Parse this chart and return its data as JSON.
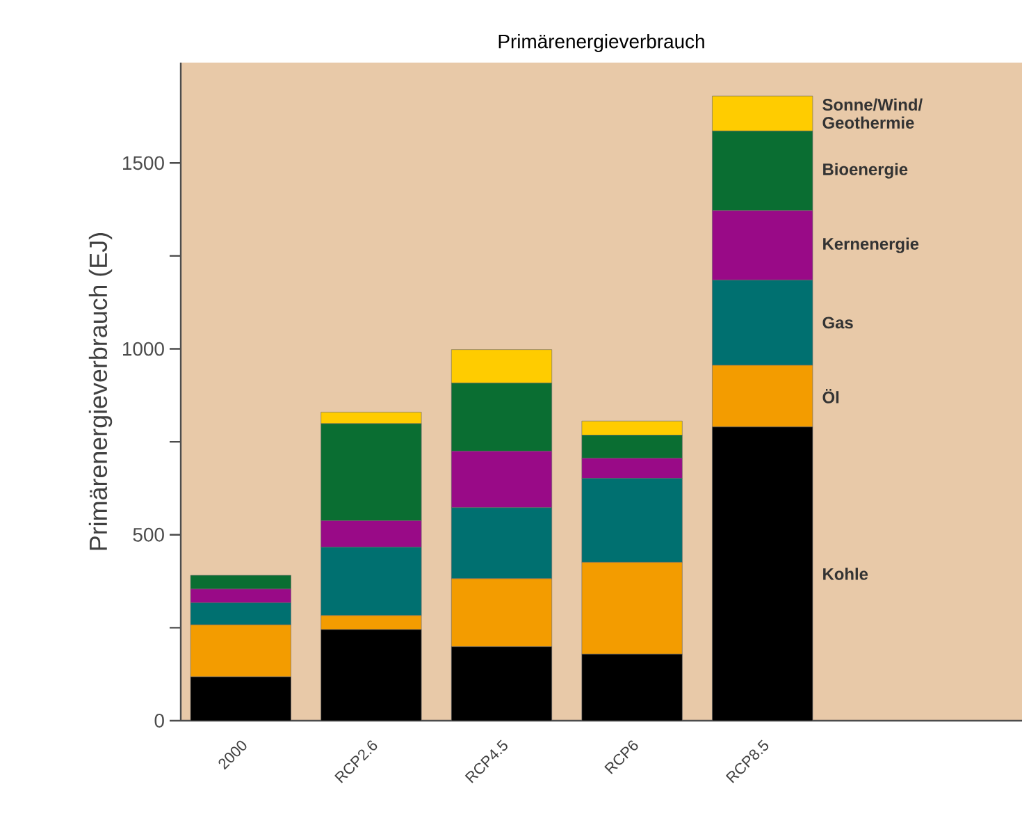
{
  "chart_data": {
    "type": "bar",
    "stacked": true,
    "title": "Primärenergieverbrauch",
    "ylabel": "Primärenergieverbrauch (EJ)",
    "categories": [
      "2000",
      "RCP2.6",
      "RCP4.5",
      "RCP6",
      "RCP8.5"
    ],
    "series": [
      {
        "name": "Kohle",
        "color": "#000000",
        "values": [
          118,
          245,
          199,
          179,
          790
        ]
      },
      {
        "name": "Öl",
        "color": "#f39c00",
        "values": [
          140,
          38,
          183,
          247,
          166
        ]
      },
      {
        "name": "Gas",
        "color": "#007070",
        "values": [
          59,
          184,
          191,
          226,
          229
        ]
      },
      {
        "name": "Kernenergie",
        "color": "#990a87",
        "values": [
          37,
          71,
          152,
          54,
          187
        ]
      },
      {
        "name": "Bioenergie",
        "color": "#0a6e32",
        "values": [
          37,
          261,
          183,
          62,
          214
        ]
      },
      {
        "name": "Sonne/Wind/ Geothermie",
        "color": "#ffcc00",
        "values": [
          0,
          31,
          90,
          38,
          94
        ]
      }
    ],
    "ylim": [
      0,
      1770
    ],
    "yticks": [
      0,
      {
        "value": 250,
        "label": null
      },
      500,
      {
        "value": 750,
        "label": null
      },
      1000,
      {
        "value": 1250,
        "label": null
      },
      1500
    ],
    "tick_labels": true
  }
}
